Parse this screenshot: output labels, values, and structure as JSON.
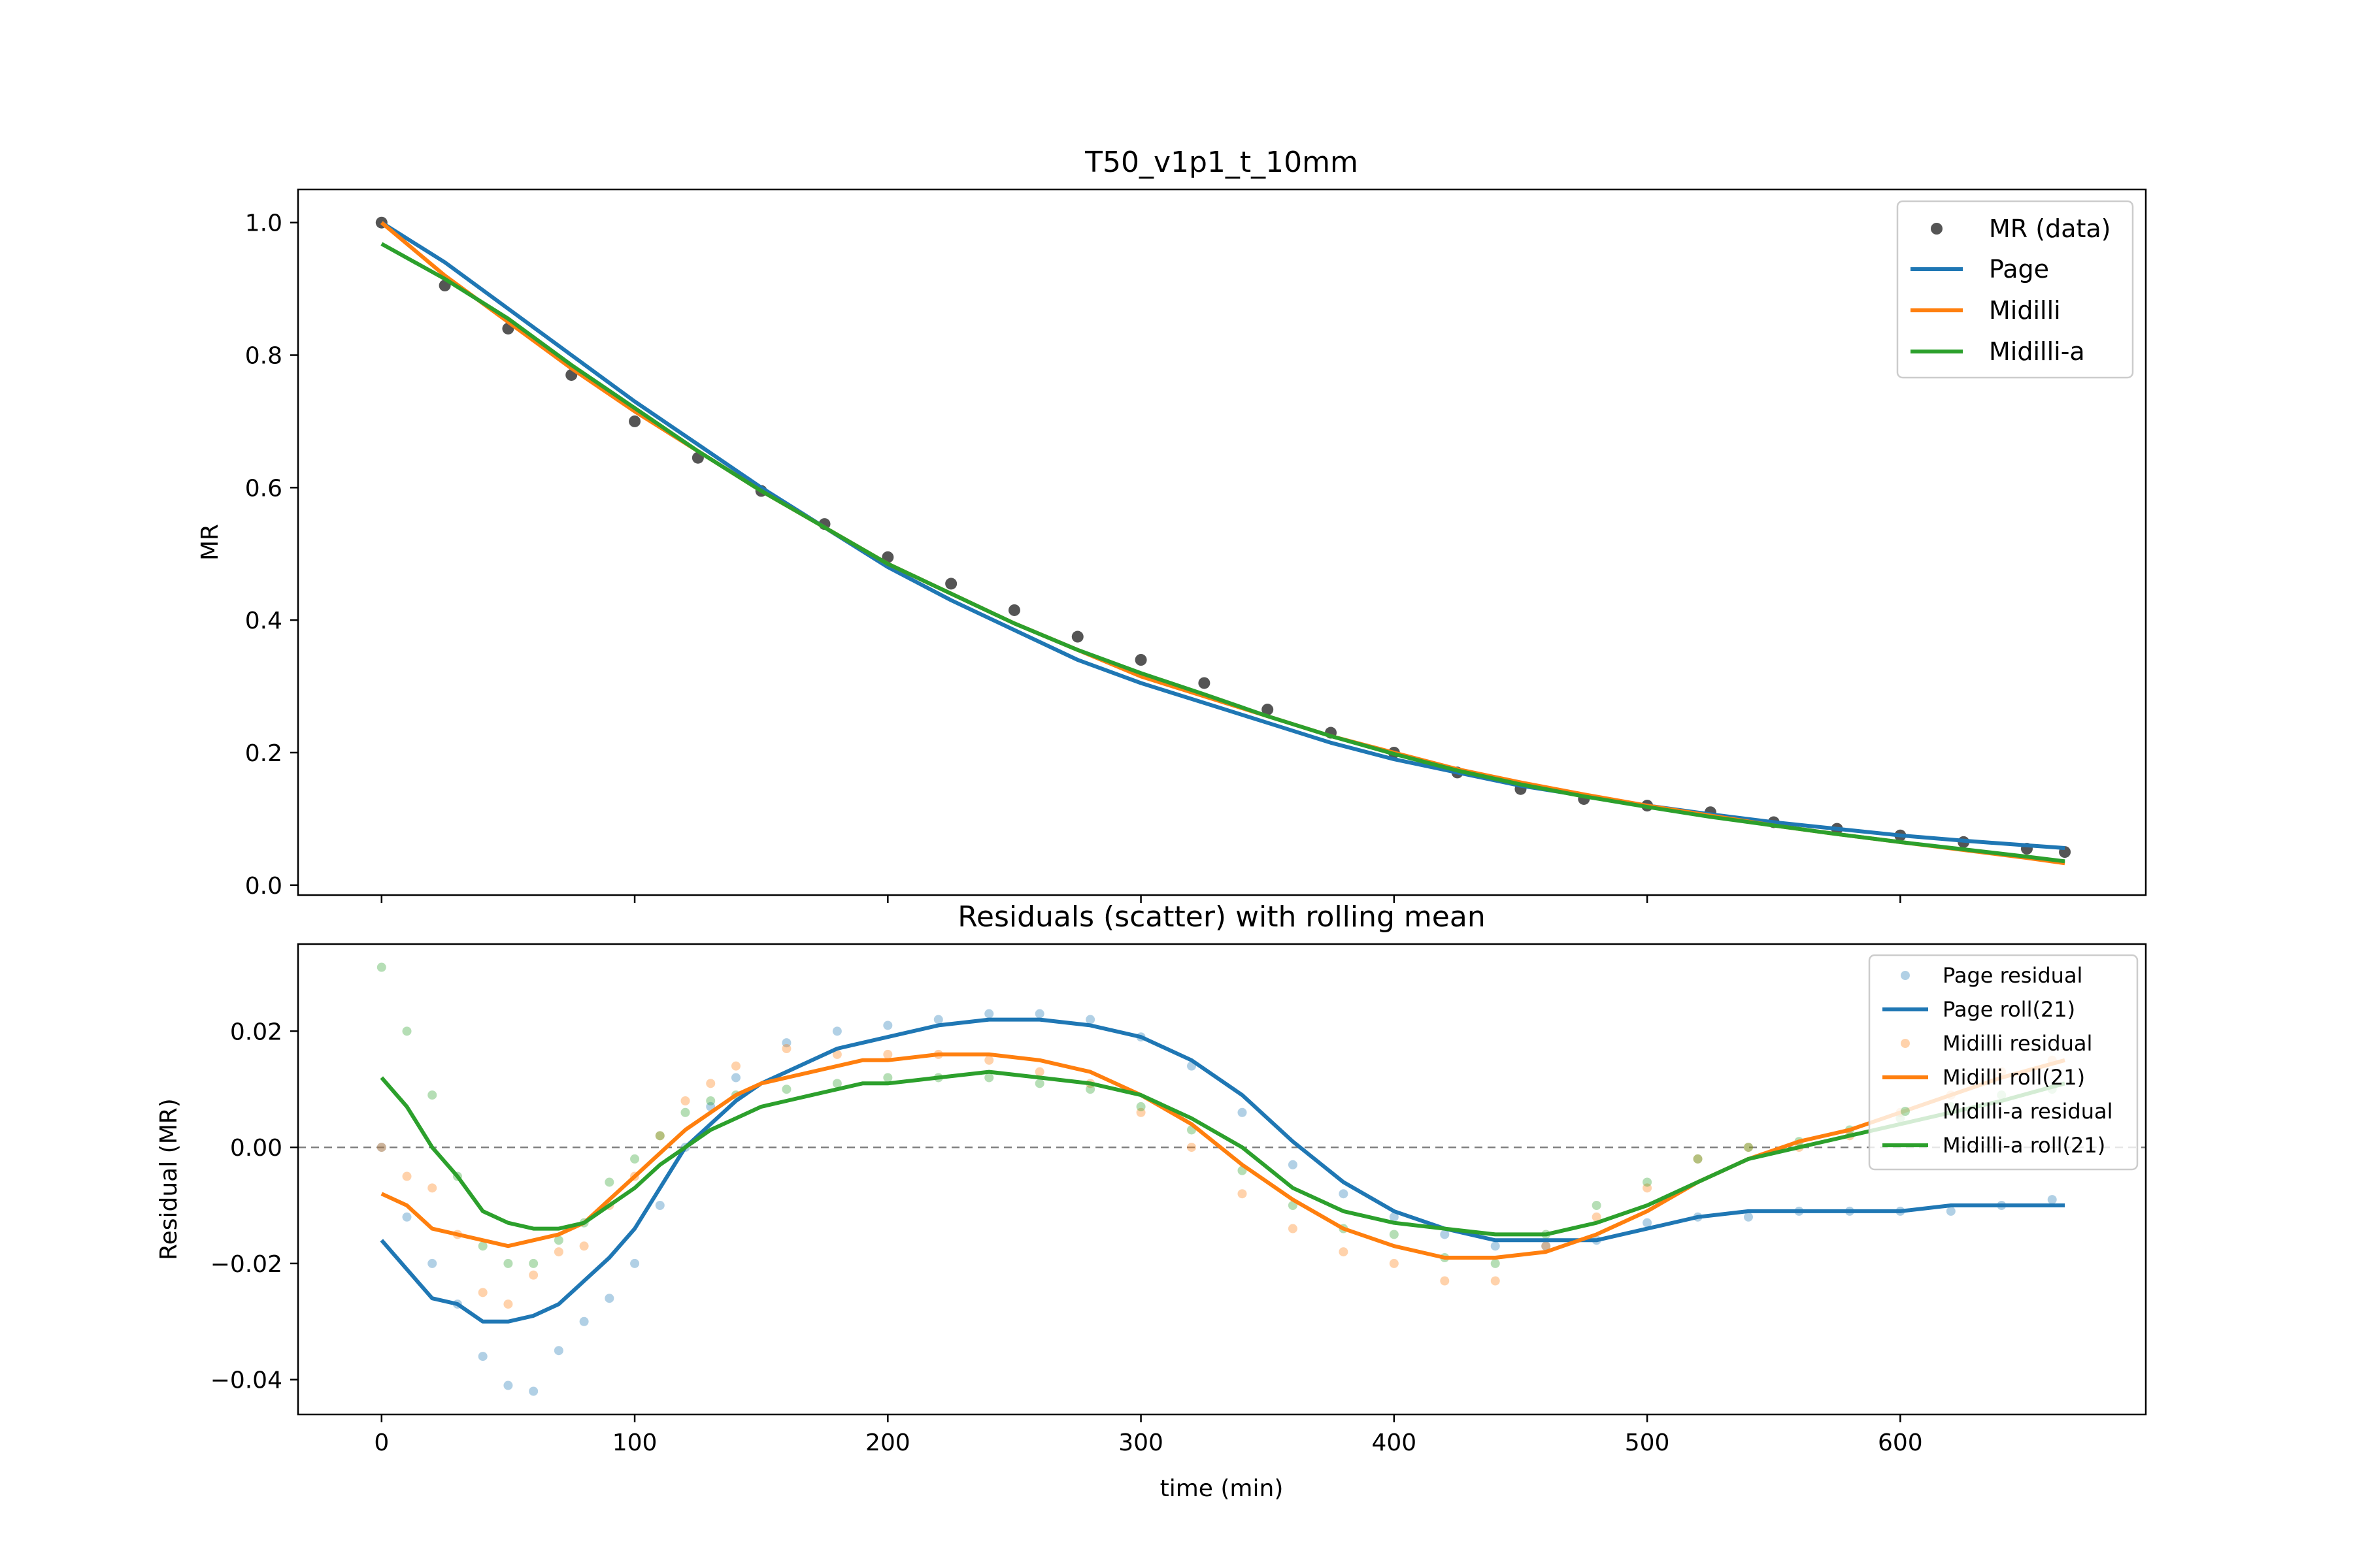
{
  "colors": {
    "data": "#555555",
    "page": "#1f77b4",
    "midilli": "#ff7f0e",
    "midilli_a": "#2ca02c",
    "zero_line": "#808080"
  },
  "chart_data": [
    {
      "type": "line",
      "title": "T50_v1p1_t_10mm",
      "xlabel": "",
      "ylabel": "MR",
      "xlim": [
        -33,
        697
      ],
      "ylim": [
        -0.015,
        1.05
      ],
      "x_ticks": [
        0,
        100,
        200,
        300,
        400,
        500,
        600
      ],
      "y_ticks": [
        0.0,
        0.2,
        0.4,
        0.6,
        0.8,
        1.0
      ],
      "y_tick_labels": [
        "0.0",
        "0.2",
        "0.4",
        "0.6",
        "0.8",
        "1.0"
      ],
      "grid": false,
      "legend_position": "top-right",
      "legend": [
        "MR (data)",
        "Page",
        "Midilli",
        "Midilli-a"
      ],
      "scatter": {
        "name": "MR (data)",
        "x": [
          0,
          25,
          50,
          75,
          100,
          125,
          150,
          175,
          200,
          225,
          250,
          275,
          300,
          325,
          350,
          375,
          400,
          425,
          450,
          475,
          500,
          525,
          550,
          575,
          600,
          625,
          650,
          665
        ],
        "y": [
          1.0,
          0.905,
          0.84,
          0.77,
          0.7,
          0.645,
          0.595,
          0.545,
          0.495,
          0.455,
          0.415,
          0.375,
          0.34,
          0.305,
          0.265,
          0.23,
          0.2,
          0.17,
          0.145,
          0.13,
          0.12,
          0.11,
          0.095,
          0.085,
          0.075,
          0.065,
          0.055,
          0.05
        ]
      },
      "series": [
        {
          "name": "Page",
          "x": [
            0,
            25,
            50,
            75,
            100,
            125,
            150,
            175,
            200,
            225,
            250,
            275,
            300,
            325,
            350,
            375,
            400,
            425,
            450,
            475,
            500,
            525,
            550,
            575,
            600,
            625,
            650,
            665
          ],
          "y": [
            1.0,
            0.94,
            0.87,
            0.8,
            0.73,
            0.665,
            0.6,
            0.54,
            0.48,
            0.43,
            0.385,
            0.34,
            0.305,
            0.275,
            0.245,
            0.215,
            0.19,
            0.17,
            0.15,
            0.135,
            0.12,
            0.107,
            0.095,
            0.085,
            0.075,
            0.067,
            0.06,
            0.056
          ]
        },
        {
          "name": "Midilli",
          "x": [
            0,
            25,
            50,
            75,
            100,
            125,
            150,
            175,
            200,
            225,
            250,
            275,
            300,
            325,
            350,
            375,
            400,
            425,
            450,
            475,
            500,
            525,
            550,
            575,
            600,
            625,
            650,
            665
          ],
          "y": [
            1.0,
            0.92,
            0.85,
            0.78,
            0.715,
            0.655,
            0.595,
            0.54,
            0.485,
            0.44,
            0.395,
            0.355,
            0.315,
            0.285,
            0.255,
            0.225,
            0.2,
            0.175,
            0.155,
            0.137,
            0.12,
            0.105,
            0.09,
            0.077,
            0.065,
            0.053,
            0.041,
            0.033
          ]
        },
        {
          "name": "Midilli-a",
          "x": [
            0,
            25,
            50,
            75,
            100,
            125,
            150,
            175,
            200,
            225,
            250,
            275,
            300,
            325,
            350,
            375,
            400,
            425,
            450,
            475,
            500,
            525,
            550,
            575,
            600,
            625,
            650,
            665
          ],
          "y": [
            0.968,
            0.915,
            0.855,
            0.785,
            0.72,
            0.655,
            0.595,
            0.54,
            0.485,
            0.44,
            0.395,
            0.355,
            0.32,
            0.288,
            0.255,
            0.225,
            0.198,
            0.173,
            0.152,
            0.134,
            0.118,
            0.103,
            0.09,
            0.077,
            0.065,
            0.054,
            0.043,
            0.036
          ]
        }
      ]
    },
    {
      "type": "scatter",
      "title": "Residuals (scatter) with rolling mean",
      "xlabel": "time (min)",
      "ylabel": "Residual (MR)",
      "xlim": [
        -33,
        697
      ],
      "ylim": [
        -0.046,
        0.035
      ],
      "x_ticks": [
        0,
        100,
        200,
        300,
        400,
        500,
        600
      ],
      "x_tick_labels": [
        "0",
        "100",
        "200",
        "300",
        "400",
        "500",
        "600"
      ],
      "y_ticks": [
        -0.04,
        -0.02,
        0.0,
        0.02
      ],
      "y_tick_labels": [
        "−0.04",
        "−0.02",
        "0.00",
        "0.02"
      ],
      "zero_line": 0,
      "grid": false,
      "legend_position": "top-right",
      "legend": [
        "Page residual",
        "Page roll(21)",
        "Midilli residual",
        "Midilli roll(21)",
        "Midilli-a residual",
        "Midilli-a roll(21)"
      ],
      "residuals": [
        {
          "name": "Page residual",
          "x": [
            0,
            10,
            20,
            30,
            40,
            50,
            60,
            70,
            80,
            90,
            100,
            110,
            120,
            130,
            140,
            160,
            180,
            200,
            220,
            240,
            260,
            280,
            300,
            320,
            340,
            360,
            380,
            400,
            420,
            440,
            460,
            480,
            500,
            520,
            540,
            560,
            580,
            600,
            620,
            640,
            660
          ],
          "y": [
            0.0,
            -0.012,
            -0.02,
            -0.027,
            -0.036,
            -0.041,
            -0.042,
            -0.035,
            -0.03,
            -0.026,
            -0.02,
            -0.01,
            0.0,
            0.007,
            0.012,
            0.018,
            0.02,
            0.021,
            0.022,
            0.023,
            0.023,
            0.022,
            0.019,
            0.014,
            0.006,
            -0.003,
            -0.008,
            -0.012,
            -0.015,
            -0.017,
            -0.017,
            -0.016,
            -0.013,
            -0.012,
            -0.012,
            -0.011,
            -0.011,
            -0.011,
            -0.011,
            -0.01,
            -0.009
          ]
        },
        {
          "name": "Midilli residual",
          "x": [
            0,
            10,
            20,
            30,
            40,
            50,
            60,
            70,
            80,
            90,
            100,
            110,
            120,
            130,
            140,
            160,
            180,
            200,
            220,
            240,
            260,
            280,
            300,
            320,
            340,
            360,
            380,
            400,
            420,
            440,
            460,
            480,
            500,
            520,
            540,
            560,
            580,
            600,
            620,
            640,
            660
          ],
          "y": [
            0.0,
            -0.005,
            -0.007,
            -0.015,
            -0.025,
            -0.027,
            -0.022,
            -0.018,
            -0.017,
            -0.01,
            -0.005,
            0.002,
            0.008,
            0.011,
            0.014,
            0.017,
            0.016,
            0.016,
            0.016,
            0.015,
            0.013,
            0.011,
            0.006,
            0.0,
            -0.008,
            -0.014,
            -0.018,
            -0.02,
            -0.023,
            -0.023,
            -0.017,
            -0.012,
            -0.007,
            -0.002,
            0.0,
            0.0,
            0.002,
            0.006,
            0.009,
            0.013,
            0.015
          ]
        },
        {
          "name": "Midilli-a residual",
          "x": [
            0,
            10,
            20,
            30,
            40,
            50,
            60,
            70,
            80,
            90,
            100,
            110,
            120,
            130,
            140,
            160,
            180,
            200,
            220,
            240,
            260,
            280,
            300,
            320,
            340,
            360,
            380,
            400,
            420,
            440,
            460,
            480,
            500,
            520,
            540,
            560,
            580,
            600,
            620,
            640,
            660
          ],
          "y": [
            0.031,
            0.02,
            0.009,
            -0.005,
            -0.017,
            -0.02,
            -0.02,
            -0.016,
            -0.013,
            -0.006,
            -0.002,
            0.002,
            0.006,
            0.008,
            0.009,
            0.01,
            0.011,
            0.012,
            0.012,
            0.012,
            0.011,
            0.01,
            0.007,
            0.003,
            -0.004,
            -0.01,
            -0.014,
            -0.015,
            -0.019,
            -0.02,
            -0.015,
            -0.01,
            -0.006,
            -0.002,
            0.0,
            0.001,
            0.003,
            0.005,
            0.007,
            0.009,
            0.01
          ]
        }
      ],
      "series": [
        {
          "name": "Page roll(21)",
          "x": [
            0,
            10,
            20,
            30,
            40,
            50,
            60,
            70,
            80,
            90,
            100,
            110,
            120,
            130,
            140,
            150,
            160,
            170,
            180,
            190,
            200,
            220,
            240,
            260,
            280,
            300,
            320,
            340,
            360,
            380,
            400,
            420,
            440,
            460,
            480,
            500,
            520,
            540,
            560,
            580,
            600,
            620,
            640,
            665
          ],
          "y": [
            -0.016,
            -0.021,
            -0.026,
            -0.027,
            -0.03,
            -0.03,
            -0.029,
            -0.027,
            -0.023,
            -0.019,
            -0.014,
            -0.007,
            0.0,
            0.004,
            0.008,
            0.011,
            0.013,
            0.015,
            0.017,
            0.018,
            0.019,
            0.021,
            0.022,
            0.022,
            0.021,
            0.019,
            0.015,
            0.009,
            0.001,
            -0.006,
            -0.011,
            -0.014,
            -0.016,
            -0.016,
            -0.016,
            -0.014,
            -0.012,
            -0.011,
            -0.011,
            -0.011,
            -0.011,
            -0.01,
            -0.01,
            -0.01
          ]
        },
        {
          "name": "Midilli roll(21)",
          "x": [
            0,
            10,
            20,
            30,
            40,
            50,
            60,
            70,
            80,
            90,
            100,
            110,
            120,
            130,
            140,
            150,
            160,
            170,
            180,
            190,
            200,
            220,
            240,
            260,
            280,
            300,
            320,
            340,
            360,
            380,
            400,
            420,
            440,
            460,
            480,
            500,
            520,
            540,
            560,
            580,
            600,
            620,
            640,
            665
          ],
          "y": [
            -0.008,
            -0.01,
            -0.014,
            -0.015,
            -0.016,
            -0.017,
            -0.016,
            -0.015,
            -0.013,
            -0.009,
            -0.005,
            -0.001,
            0.003,
            0.006,
            0.009,
            0.011,
            0.012,
            0.013,
            0.014,
            0.015,
            0.015,
            0.016,
            0.016,
            0.015,
            0.013,
            0.009,
            0.004,
            -0.003,
            -0.009,
            -0.014,
            -0.017,
            -0.019,
            -0.019,
            -0.018,
            -0.015,
            -0.011,
            -0.006,
            -0.002,
            0.001,
            0.003,
            0.006,
            0.009,
            0.012,
            0.015
          ]
        },
        {
          "name": "Midilli-a roll(21)",
          "x": [
            0,
            10,
            20,
            30,
            40,
            50,
            60,
            70,
            80,
            90,
            100,
            110,
            120,
            130,
            140,
            150,
            160,
            170,
            180,
            190,
            200,
            220,
            240,
            260,
            280,
            300,
            320,
            340,
            360,
            380,
            400,
            420,
            440,
            460,
            480,
            500,
            520,
            540,
            560,
            580,
            600,
            620,
            640,
            665
          ],
          "y": [
            0.012,
            0.007,
            0.0,
            -0.005,
            -0.011,
            -0.013,
            -0.014,
            -0.014,
            -0.013,
            -0.01,
            -0.007,
            -0.003,
            0.0,
            0.003,
            0.005,
            0.007,
            0.008,
            0.009,
            0.01,
            0.011,
            0.011,
            0.012,
            0.013,
            0.012,
            0.011,
            0.009,
            0.005,
            0.0,
            -0.007,
            -0.011,
            -0.013,
            -0.014,
            -0.015,
            -0.015,
            -0.013,
            -0.01,
            -0.006,
            -0.002,
            0.0,
            0.002,
            0.004,
            0.006,
            0.008,
            0.011
          ]
        }
      ]
    }
  ]
}
